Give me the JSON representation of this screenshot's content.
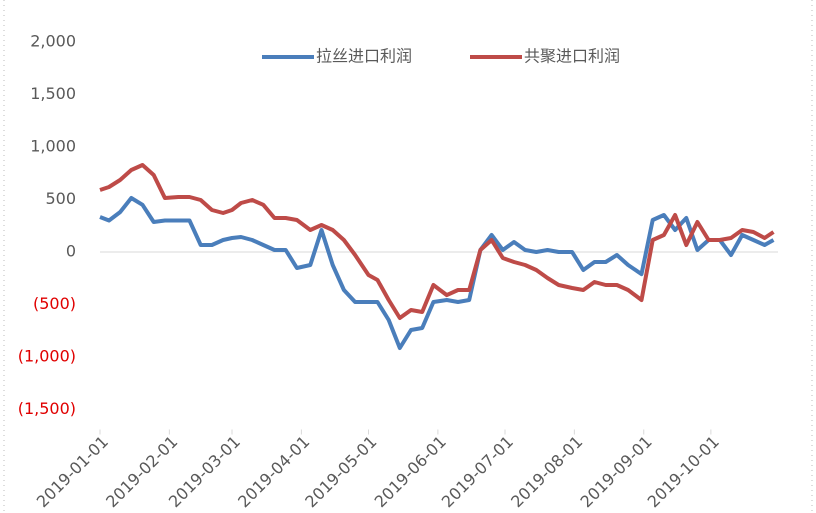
{
  "chart_data": {
    "type": "line",
    "x": [
      "2019-01-01",
      "2019-01-05",
      "2019-01-10",
      "2019-01-15",
      "2019-01-20",
      "2019-01-25",
      "2019-01-30",
      "2019-02-05",
      "2019-02-10",
      "2019-02-15",
      "2019-02-20",
      "2019-02-25",
      "2019-03-01",
      "2019-03-05",
      "2019-03-10",
      "2019-03-15",
      "2019-03-20",
      "2019-03-25",
      "2019-03-30",
      "2019-04-05",
      "2019-04-10",
      "2019-04-15",
      "2019-04-20",
      "2019-04-25",
      "2019-05-01",
      "2019-05-05",
      "2019-05-10",
      "2019-05-15",
      "2019-05-20",
      "2019-05-25",
      "2019-05-30",
      "2019-06-05",
      "2019-06-10",
      "2019-06-15",
      "2019-06-20",
      "2019-06-25",
      "2019-06-30",
      "2019-07-05",
      "2019-07-10",
      "2019-07-15",
      "2019-07-20",
      "2019-07-25",
      "2019-07-31",
      "2019-08-05",
      "2019-08-10",
      "2019-08-15",
      "2019-08-20",
      "2019-08-25",
      "2019-08-31",
      "2019-09-05",
      "2019-09-10",
      "2019-09-15",
      "2019-09-20",
      "2019-09-25",
      "2019-09-30",
      "2019-10-05",
      "2019-10-10",
      "2019-10-15",
      "2019-10-20",
      "2019-10-25",
      "2019-10-29"
    ],
    "series": [
      {
        "name": "拉丝进口利润",
        "color": "#4a7ebb",
        "values": [
          333,
          300,
          380,
          514,
          450,
          286,
          300,
          300,
          300,
          67,
          67,
          114,
          133,
          143,
          114,
          67,
          19,
          19,
          -152,
          -124,
          210,
          -124,
          -362,
          -476,
          -476,
          -476,
          -648,
          -914,
          -743,
          -724,
          -476,
          -457,
          -476,
          -457,
          19,
          162,
          19,
          95,
          19,
          0,
          19,
          0,
          0,
          -171,
          -95,
          -95,
          -29,
          -124,
          -210,
          305,
          352,
          210,
          324,
          19,
          114,
          114,
          -29,
          162,
          114,
          67,
          114
        ]
      },
      {
        "name": "共聚进口利润",
        "color": "#be4b48",
        "values": [
          590,
          619,
          686,
          781,
          829,
          733,
          514,
          524,
          524,
          495,
          400,
          371,
          400,
          467,
          495,
          450,
          324,
          324,
          305,
          210,
          257,
          210,
          114,
          -29,
          -219,
          -267,
          -457,
          -629,
          -552,
          -571,
          -314,
          -410,
          -362,
          -362,
          19,
          114,
          -57,
          -95,
          -124,
          -171,
          -248,
          -314,
          -343,
          -362,
          -286,
          -314,
          -314,
          -362,
          -457,
          114,
          162,
          352,
          67,
          286,
          114,
          114,
          133,
          210,
          190,
          133,
          190
        ]
      }
    ],
    "xlim": [
      "2019-01-01",
      "2019-10-31"
    ],
    "xticks": [
      "2019-01-01",
      "2019-02-01",
      "2019-03-01",
      "2019-04-01",
      "2019-05-01",
      "2019-06-01",
      "2019-07-01",
      "2019-08-01",
      "2019-09-01",
      "2019-10-01"
    ],
    "ylim": [
      -1500,
      2000
    ],
    "yticks": [
      {
        "value": -1500,
        "label": "(1,500)"
      },
      {
        "value": -1000,
        "label": "(1,000)"
      },
      {
        "value": -500,
        "label": "(500)"
      },
      0,
      {
        "value": 500,
        "label": "500"
      },
      {
        "value": 1000,
        "label": "1,000"
      },
      {
        "value": 1500,
        "label": "1,500"
      },
      {
        "value": 2000,
        "label": "2,000"
      }
    ],
    "negative_tick_color": "#e00000",
    "grid": false,
    "legend": "top"
  }
}
